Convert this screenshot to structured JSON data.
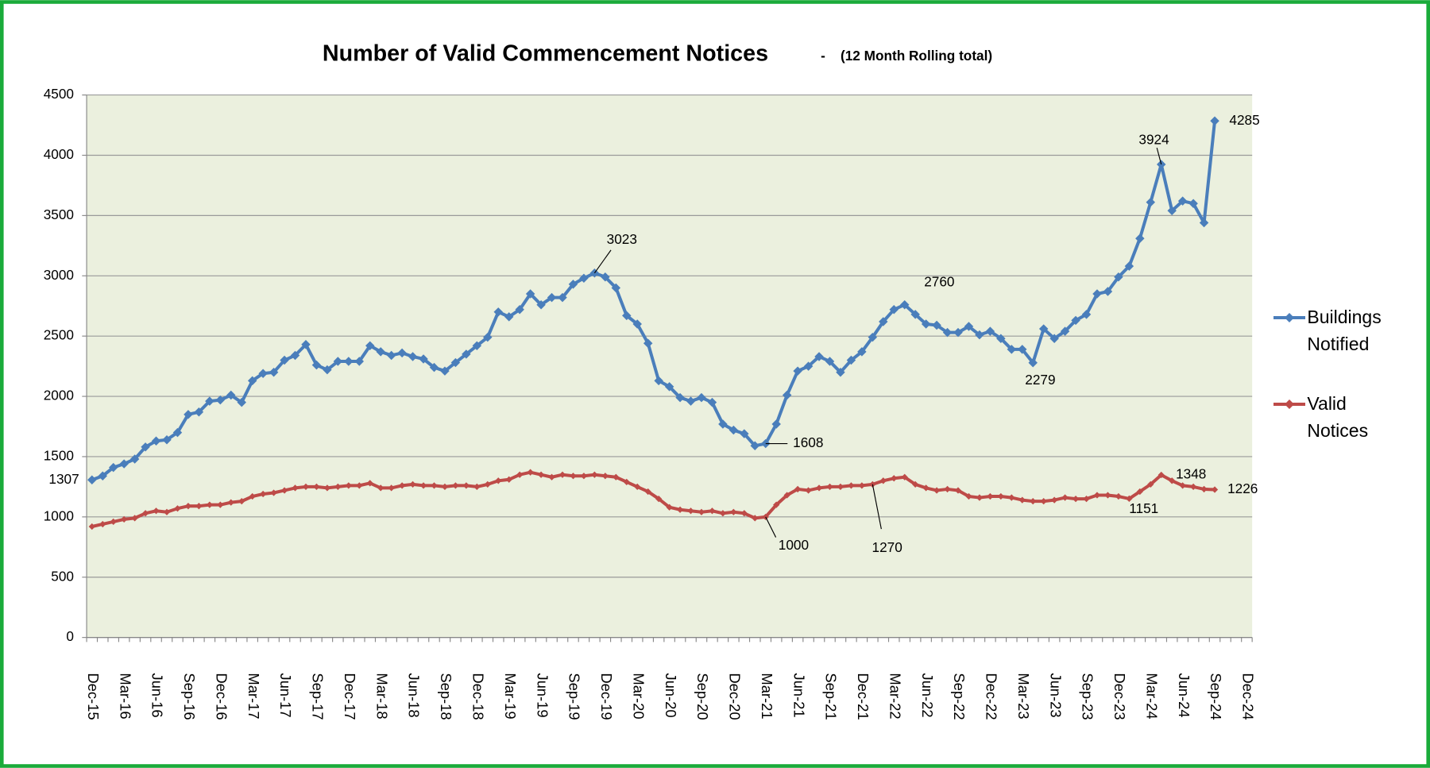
{
  "chart_data": {
    "type": "line",
    "title": "Number of Valid Commencement Notices",
    "subtitle": "-    (12 Month Rolling total)",
    "categories": [
      "Dec-15",
      null,
      null,
      "Mar-16",
      null,
      null,
      "Jun-16",
      null,
      null,
      "Sep-16",
      null,
      null,
      "Dec-16",
      null,
      null,
      "Mar-17",
      null,
      null,
      "Jun-17",
      null,
      null,
      "Sep-17",
      null,
      null,
      "Dec-17",
      null,
      null,
      "Mar-18",
      null,
      null,
      "Jun-18",
      null,
      null,
      "Sep-18",
      null,
      null,
      "Dec-18",
      null,
      null,
      "Mar-19",
      null,
      null,
      "Jun-19",
      null,
      null,
      "Sep-19",
      null,
      null,
      "Dec-19",
      null,
      null,
      "Mar-20",
      null,
      null,
      "Jun-20",
      null,
      null,
      "Sep-20",
      null,
      null,
      "Dec-20",
      null,
      null,
      "Mar-21",
      null,
      null,
      "Jun-21",
      null,
      null,
      "Sep-21",
      null,
      null,
      "Dec-21",
      null,
      null,
      "Mar-22",
      null,
      null,
      "Jun-22",
      null,
      null,
      "Sep-22",
      null,
      null,
      "Dec-22",
      null,
      null,
      "Mar-23",
      null,
      null,
      "Jun-23",
      null,
      null,
      "Sep-23",
      null,
      null,
      "Dec-23",
      null,
      null,
      "Mar-24",
      null,
      null,
      "Jun-24",
      null,
      null,
      "Sep-24",
      null,
      null,
      "Dec-24"
    ],
    "series": [
      {
        "name": "Buildings Notified",
        "color": "#4a7ebb",
        "values": [
          1307,
          1340,
          1410,
          1440,
          1480,
          1580,
          1630,
          1640,
          1700,
          1850,
          1870,
          1960,
          1970,
          2010,
          1950,
          2130,
          2190,
          2200,
          2300,
          2340,
          2430,
          2260,
          2220,
          2290,
          2290,
          2290,
          2420,
          2370,
          2340,
          2360,
          2330,
          2310,
          2240,
          2210,
          2280,
          2350,
          2420,
          2490,
          2700,
          2660,
          2720,
          2850,
          2760,
          2820,
          2820,
          2930,
          2980,
          3023,
          2990,
          2900,
          2670,
          2600,
          2440,
          2130,
          2080,
          1990,
          1960,
          1990,
          1950,
          1770,
          1720,
          1690,
          1590,
          1608,
          1770,
          2010,
          2210,
          2250,
          2330,
          2290,
          2200,
          2300,
          2370,
          2490,
          2620,
          2720,
          2760,
          2680,
          2600,
          2590,
          2530,
          2530,
          2580,
          2510,
          2540,
          2480,
          2390,
          2390,
          2279,
          2560,
          2480,
          2540,
          2630,
          2680,
          2850,
          2870,
          2990,
          3080,
          3310,
          3610,
          3924,
          3540,
          3620,
          3600,
          3440,
          4285,
          null,
          null,
          null
        ],
        "value_labels": [
          "1307",
          null,
          null,
          null,
          null,
          null,
          null,
          null,
          null,
          null,
          null,
          null,
          null,
          null,
          null,
          null,
          null,
          null,
          null,
          null,
          null,
          null,
          null,
          null,
          null,
          null,
          null,
          null,
          null,
          null,
          null,
          null,
          null,
          null,
          null,
          null,
          null,
          null,
          null,
          null,
          null,
          null,
          null,
          null,
          null,
          null,
          null,
          "3023",
          null,
          null,
          null,
          null,
          null,
          null,
          null,
          null,
          null,
          null,
          null,
          null,
          null,
          null,
          null,
          "1608",
          null,
          null,
          null,
          null,
          null,
          null,
          null,
          null,
          null,
          null,
          null,
          null,
          "2760",
          null,
          null,
          null,
          null,
          null,
          null,
          null,
          null,
          null,
          null,
          null,
          "2279",
          null,
          null,
          null,
          null,
          null,
          null,
          null,
          null,
          null,
          null,
          null,
          "3924",
          null,
          null,
          null,
          null,
          "4285",
          null,
          null,
          null
        ]
      },
      {
        "name": "Valid Notices",
        "color": "#be4b48",
        "values": [
          920,
          940,
          960,
          980,
          990,
          1030,
          1050,
          1040,
          1070,
          1090,
          1090,
          1100,
          1100,
          1120,
          1130,
          1170,
          1190,
          1200,
          1220,
          1240,
          1250,
          1250,
          1240,
          1250,
          1260,
          1260,
          1280,
          1240,
          1240,
          1260,
          1270,
          1260,
          1260,
          1250,
          1260,
          1260,
          1250,
          1270,
          1300,
          1310,
          1350,
          1370,
          1350,
          1330,
          1350,
          1340,
          1340,
          1350,
          1340,
          1330,
          1290,
          1250,
          1210,
          1150,
          1080,
          1060,
          1050,
          1040,
          1050,
          1030,
          1040,
          1030,
          990,
          1000,
          1100,
          1180,
          1230,
          1220,
          1240,
          1250,
          1250,
          1260,
          1260,
          1270,
          1300,
          1320,
          1330,
          1270,
          1240,
          1220,
          1230,
          1220,
          1170,
          1160,
          1170,
          1170,
          1160,
          1140,
          1130,
          1130,
          1140,
          1160,
          1150,
          1150,
          1180,
          1180,
          1170,
          1151,
          1210,
          1270,
          1348,
          1300,
          1260,
          1250,
          1230,
          1226,
          null,
          null,
          null
        ],
        "value_labels": [
          null,
          null,
          null,
          null,
          null,
          null,
          null,
          null,
          null,
          null,
          null,
          null,
          null,
          null,
          null,
          null,
          null,
          null,
          null,
          null,
          null,
          null,
          null,
          null,
          null,
          null,
          null,
          null,
          null,
          null,
          null,
          null,
          null,
          null,
          null,
          null,
          null,
          null,
          null,
          null,
          null,
          null,
          null,
          null,
          null,
          null,
          null,
          null,
          null,
          null,
          null,
          null,
          null,
          null,
          null,
          null,
          null,
          null,
          null,
          null,
          null,
          null,
          null,
          "1000",
          null,
          null,
          null,
          null,
          null,
          null,
          null,
          null,
          null,
          "1270",
          null,
          null,
          null,
          null,
          null,
          null,
          null,
          null,
          null,
          null,
          null,
          null,
          null,
          null,
          null,
          null,
          null,
          null,
          null,
          null,
          null,
          null,
          null,
          "1151",
          null,
          null,
          "1348",
          null,
          null,
          null,
          null,
          "1226",
          null,
          null,
          null
        ]
      }
    ],
    "ylim": [
      0,
      4500
    ],
    "yticks": [
      0,
      500,
      1000,
      1500,
      2000,
      2500,
      3000,
      3500,
      4000,
      4500
    ],
    "grid": true,
    "legend": "right"
  }
}
